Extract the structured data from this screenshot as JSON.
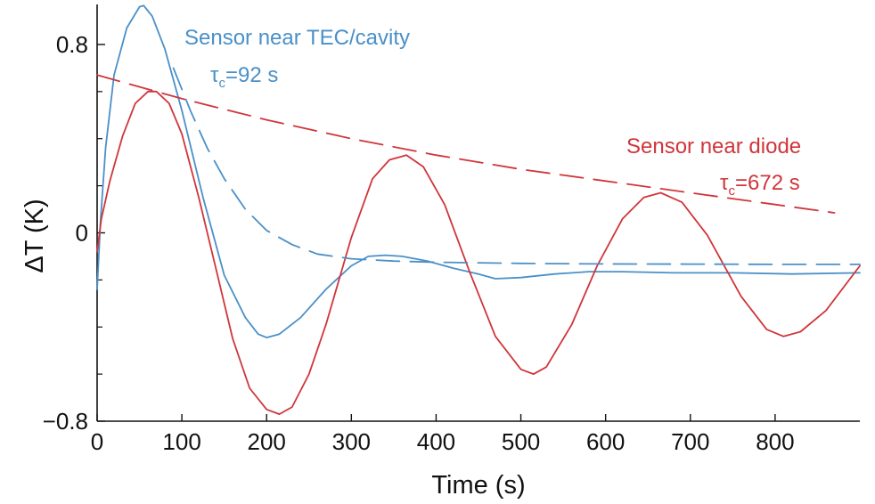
{
  "chart_data": {
    "type": "line",
    "xlabel": "Time (s)",
    "ylabel": "ΔT (K)",
    "xlim": [
      0,
      900
    ],
    "ylim": [
      -0.8,
      0.97
    ],
    "x_ticks": [
      0,
      100,
      200,
      300,
      400,
      500,
      600,
      700,
      800
    ],
    "x_tick_labels": [
      "0",
      "100",
      "200",
      "300",
      "400",
      "500",
      "600",
      "700",
      "800"
    ],
    "y_ticks": [
      -0.8,
      0,
      0.8
    ],
    "y_tick_labels": [
      "−0.8",
      "0",
      "0.8"
    ],
    "y_minor_ticks": [
      -0.6,
      -0.4,
      -0.2,
      0.2,
      0.4,
      0.6
    ],
    "grid": false,
    "series": [
      {
        "color": "#4a90c8",
        "style": "solid",
        "points": [
          [
            0,
            -0.24
          ],
          [
            4,
            0.05
          ],
          [
            10,
            0.36
          ],
          [
            20,
            0.67
          ],
          [
            35,
            0.87
          ],
          [
            50,
            0.96
          ],
          [
            55,
            0.965
          ],
          [
            65,
            0.92
          ],
          [
            80,
            0.78
          ],
          [
            100,
            0.52
          ],
          [
            125,
            0.15
          ],
          [
            150,
            -0.18
          ],
          [
            175,
            -0.36
          ],
          [
            190,
            -0.43
          ],
          [
            200,
            -0.445
          ],
          [
            215,
            -0.43
          ],
          [
            240,
            -0.36
          ],
          [
            270,
            -0.24
          ],
          [
            300,
            -0.14
          ],
          [
            320,
            -0.1
          ],
          [
            340,
            -0.095
          ],
          [
            360,
            -0.1
          ],
          [
            390,
            -0.12
          ],
          [
            420,
            -0.15
          ],
          [
            450,
            -0.175
          ],
          [
            470,
            -0.195
          ],
          [
            500,
            -0.19
          ],
          [
            540,
            -0.175
          ],
          [
            580,
            -0.165
          ],
          [
            620,
            -0.165
          ],
          [
            680,
            -0.17
          ],
          [
            750,
            -0.17
          ],
          [
            820,
            -0.175
          ],
          [
            900,
            -0.17
          ]
        ]
      },
      {
        "color": "#d0353a",
        "style": "solid",
        "points": [
          [
            0,
            -0.08
          ],
          [
            5,
            0.06
          ],
          [
            15,
            0.22
          ],
          [
            30,
            0.41
          ],
          [
            45,
            0.55
          ],
          [
            60,
            0.6
          ],
          [
            70,
            0.6
          ],
          [
            85,
            0.55
          ],
          [
            100,
            0.42
          ],
          [
            120,
            0.15
          ],
          [
            140,
            -0.15
          ],
          [
            160,
            -0.45
          ],
          [
            180,
            -0.66
          ],
          [
            200,
            -0.75
          ],
          [
            215,
            -0.77
          ],
          [
            230,
            -0.74
          ],
          [
            250,
            -0.6
          ],
          [
            270,
            -0.39
          ],
          [
            300,
            -0.02
          ],
          [
            325,
            0.23
          ],
          [
            345,
            0.31
          ],
          [
            365,
            0.33
          ],
          [
            385,
            0.28
          ],
          [
            410,
            0.12
          ],
          [
            440,
            -0.17
          ],
          [
            470,
            -0.44
          ],
          [
            500,
            -0.58
          ],
          [
            515,
            -0.6
          ],
          [
            530,
            -0.57
          ],
          [
            560,
            -0.39
          ],
          [
            590,
            -0.14
          ],
          [
            620,
            0.06
          ],
          [
            645,
            0.15
          ],
          [
            665,
            0.17
          ],
          [
            690,
            0.13
          ],
          [
            720,
            -0.01
          ],
          [
            760,
            -0.27
          ],
          [
            790,
            -0.41
          ],
          [
            810,
            -0.44
          ],
          [
            830,
            -0.42
          ],
          [
            860,
            -0.33
          ],
          [
            900,
            -0.14
          ]
        ]
      },
      {
        "color": "#4a90c8",
        "style": "dashed",
        "points": [
          [
            90,
            0.7
          ],
          [
            110,
            0.52
          ],
          [
            130,
            0.36
          ],
          [
            150,
            0.23
          ],
          [
            175,
            0.1
          ],
          [
            200,
            0.01
          ],
          [
            230,
            -0.05
          ],
          [
            260,
            -0.09
          ],
          [
            300,
            -0.11
          ],
          [
            350,
            -0.12
          ],
          [
            400,
            -0.125
          ],
          [
            500,
            -0.13
          ],
          [
            600,
            -0.132
          ],
          [
            700,
            -0.133
          ],
          [
            800,
            -0.134
          ],
          [
            900,
            -0.134
          ]
        ]
      },
      {
        "color": "#d0353a",
        "style": "dashed",
        "points": [
          [
            0,
            0.67
          ],
          [
            100,
            0.57
          ],
          [
            200,
            0.48
          ],
          [
            300,
            0.4
          ],
          [
            400,
            0.33
          ],
          [
            500,
            0.27
          ],
          [
            600,
            0.22
          ],
          [
            700,
            0.17
          ],
          [
            800,
            0.12
          ],
          [
            870,
            0.085
          ]
        ]
      }
    ],
    "annotations": [
      {
        "text": "Sensor near TEC/cavity",
        "color": "#4a90c8"
      },
      {
        "text": "τ",
        "sub": "c",
        "rest": "=92 s",
        "color": "#4a90c8"
      },
      {
        "text": "Sensor near diode",
        "color": "#d0353a"
      },
      {
        "text": "τ",
        "sub": "c",
        "rest": "=672 s",
        "color": "#d0353a"
      }
    ]
  }
}
